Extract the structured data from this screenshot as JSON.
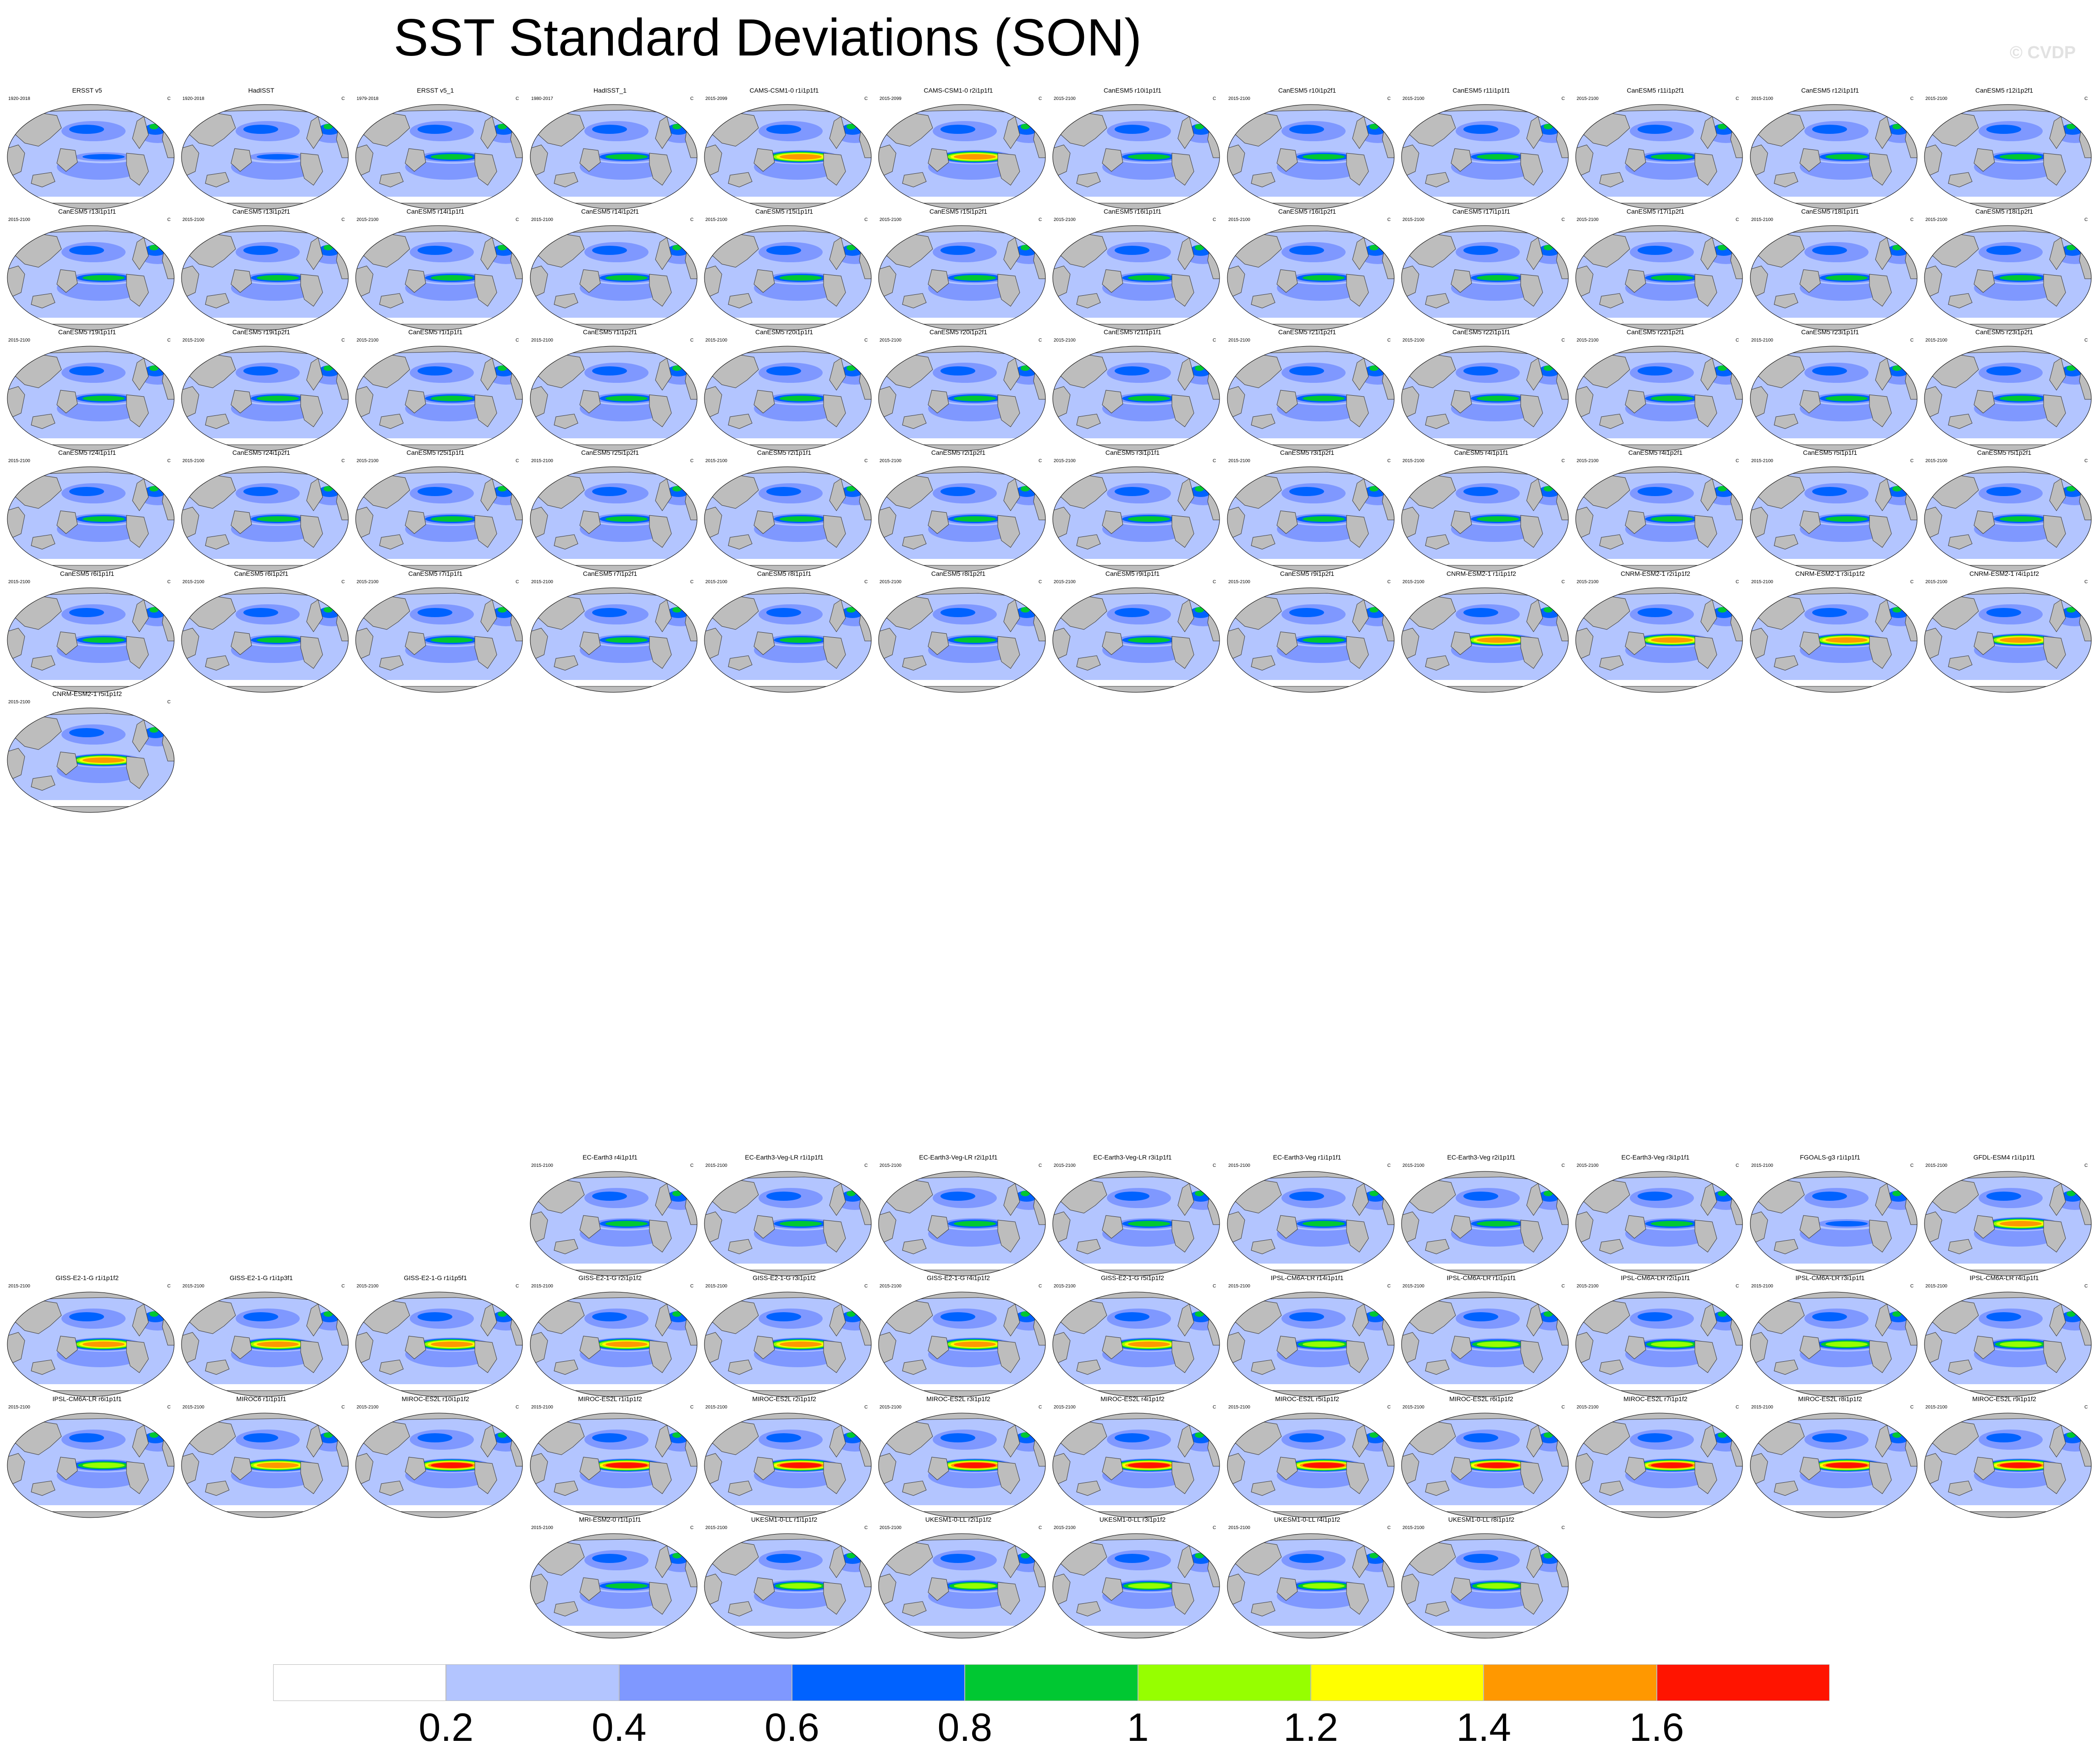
{
  "title": "SST Standard Deviations (SON)",
  "watermark": "© CVDP",
  "colors": {
    "land": "#bdbdbd",
    "ocean_base": "#b3c5ff",
    "coast": "#3a3a3a",
    "levels": [
      "#ffffff",
      "#b3c5ff",
      "#7f98ff",
      "#0062ff",
      "#00c832",
      "#96ff00",
      "#ffff00",
      "#ff9800",
      "#ff1400"
    ]
  },
  "chart_data": {
    "type": "heatmap",
    "title": "SST Standard Deviations (SON)",
    "units": "C",
    "levels": [
      0.2,
      0.4,
      0.6,
      0.8,
      1,
      1.2,
      1.4,
      1.6
    ],
    "colorbar_labels": [
      "0.2",
      "0.4",
      "0.6",
      "0.8",
      "1",
      "1.2",
      "1.4",
      "1.6"
    ],
    "panels": [
      {
        "title": "ERSST v5",
        "years": "1920-2018",
        "units": "C",
        "enso": 0.9
      },
      {
        "title": "HadISST",
        "years": "1920-2018",
        "units": "C",
        "enso": 0.9
      },
      {
        "title": "ERSST v5_1",
        "years": "1979-2018",
        "units": "C",
        "enso": 1.0
      },
      {
        "title": "HadISST_1",
        "years": "1980-2017",
        "units": "C",
        "enso": 1.0
      },
      {
        "title": "CAMS-CSM1-0 r1i1p1f1",
        "years": "2015-2099",
        "units": "C",
        "enso": 1.6
      },
      {
        "title": "CAMS-CSM1-0 r2i1p1f1",
        "years": "2015-2099",
        "units": "C",
        "enso": 1.6
      },
      {
        "title": "CanESM5 r10i1p1f1",
        "years": "2015-2100",
        "units": "C",
        "enso": 1.0
      },
      {
        "title": "CanESM5 r10i1p2f1",
        "years": "2015-2100",
        "units": "C",
        "enso": 1.0
      },
      {
        "title": "CanESM5 r11i1p1f1",
        "years": "2015-2100",
        "units": "C",
        "enso": 1.0
      },
      {
        "title": "CanESM5 r11i1p2f1",
        "years": "2015-2100",
        "units": "C",
        "enso": 1.0
      },
      {
        "title": "CanESM5 r12i1p1f1",
        "years": "2015-2100",
        "units": "C",
        "enso": 1.0
      },
      {
        "title": "CanESM5 r12i1p2f1",
        "years": "2015-2100",
        "units": "C",
        "enso": 1.0
      },
      {
        "title": "CanESM5 r13i1p1f1",
        "years": "2015-2100",
        "units": "C",
        "enso": 1.0
      },
      {
        "title": "CanESM5 r13i1p2f1",
        "years": "2015-2100",
        "units": "C",
        "enso": 1.0
      },
      {
        "title": "CanESM5 r14i1p1f1",
        "years": "2015-2100",
        "units": "C",
        "enso": 1.0
      },
      {
        "title": "CanESM5 r14i1p2f1",
        "years": "2015-2100",
        "units": "C",
        "enso": 1.0
      },
      {
        "title": "CanESM5 r15i1p1f1",
        "years": "2015-2100",
        "units": "C",
        "enso": 1.0
      },
      {
        "title": "CanESM5 r15i1p2f1",
        "years": "2015-2100",
        "units": "C",
        "enso": 1.0
      },
      {
        "title": "CanESM5 r16i1p1f1",
        "years": "2015-2100",
        "units": "C",
        "enso": 1.0
      },
      {
        "title": "CanESM5 r16i1p2f1",
        "years": "2015-2100",
        "units": "C",
        "enso": 1.0
      },
      {
        "title": "CanESM5 r17i1p1f1",
        "years": "2015-2100",
        "units": "C",
        "enso": 1.0
      },
      {
        "title": "CanESM5 r17i1p2f1",
        "years": "2015-2100",
        "units": "C",
        "enso": 1.0
      },
      {
        "title": "CanESM5 r18i1p1f1",
        "years": "2015-2100",
        "units": "C",
        "enso": 1.0
      },
      {
        "title": "CanESM5 r18i1p2f1",
        "years": "2015-2100",
        "units": "C",
        "enso": 1.0
      },
      {
        "title": "CanESM5 r19i1p1f1",
        "years": "2015-2100",
        "units": "C",
        "enso": 1.0
      },
      {
        "title": "CanESM5 r19i1p2f1",
        "years": "2015-2100",
        "units": "C",
        "enso": 1.0
      },
      {
        "title": "CanESM5 r1i1p1f1",
        "years": "2015-2100",
        "units": "C",
        "enso": 1.0
      },
      {
        "title": "CanESM5 r1i1p2f1",
        "years": "2015-2100",
        "units": "C",
        "enso": 1.0
      },
      {
        "title": "CanESM5 r20i1p1f1",
        "years": "2015-2100",
        "units": "C",
        "enso": 1.0
      },
      {
        "title": "CanESM5 r20i1p2f1",
        "years": "2015-2100",
        "units": "C",
        "enso": 1.0
      },
      {
        "title": "CanESM5 r21i1p1f1",
        "years": "2015-2100",
        "units": "C",
        "enso": 1.0
      },
      {
        "title": "CanESM5 r21i1p2f1",
        "years": "2015-2100",
        "units": "C",
        "enso": 1.0
      },
      {
        "title": "CanESM5 r22i1p1f1",
        "years": "2015-2100",
        "units": "C",
        "enso": 1.0
      },
      {
        "title": "CanESM5 r22i1p2f1",
        "years": "2015-2100",
        "units": "C",
        "enso": 1.0
      },
      {
        "title": "CanESM5 r23i1p1f1",
        "years": "2015-2100",
        "units": "C",
        "enso": 1.0
      },
      {
        "title": "CanESM5 r23i1p2f1",
        "years": "2015-2100",
        "units": "C",
        "enso": 1.0
      },
      {
        "title": "CanESM5 r24i1p1f1",
        "years": "2015-2100",
        "units": "C",
        "enso": 1.0
      },
      {
        "title": "CanESM5 r24i1p2f1",
        "years": "2015-2100",
        "units": "C",
        "enso": 1.0
      },
      {
        "title": "CanESM5 r25i1p1f1",
        "years": "2015-2100",
        "units": "C",
        "enso": 1.0
      },
      {
        "title": "CanESM5 r25i1p2f1",
        "years": "2015-2100",
        "units": "C",
        "enso": 1.0
      },
      {
        "title": "CanESM5 r2i1p1f1",
        "years": "2015-2100",
        "units": "C",
        "enso": 1.0
      },
      {
        "title": "CanESM5 r2i1p2f1",
        "years": "2015-2100",
        "units": "C",
        "enso": 1.0
      },
      {
        "title": "CanESM5 r3i1p1f1",
        "years": "2015-2100",
        "units": "C",
        "enso": 1.0
      },
      {
        "title": "CanESM5 r3i1p2f1",
        "years": "2015-2100",
        "units": "C",
        "enso": 1.0
      },
      {
        "title": "CanESM5 r4i1p1f1",
        "years": "2015-2100",
        "units": "C",
        "enso": 1.0
      },
      {
        "title": "CanESM5 r4i1p2f1",
        "years": "2015-2100",
        "units": "C",
        "enso": 1.0
      },
      {
        "title": "CanESM5 r5i1p1f1",
        "years": "2015-2100",
        "units": "C",
        "enso": 1.0
      },
      {
        "title": "CanESM5 r5i1p2f1",
        "years": "2015-2100",
        "units": "C",
        "enso": 1.0
      },
      {
        "title": "CanESM5 r6i1p1f1",
        "years": "2015-2100",
        "units": "C",
        "enso": 1.0
      },
      {
        "title": "CanESM5 r6i1p2f1",
        "years": "2015-2100",
        "units": "C",
        "enso": 1.0
      },
      {
        "title": "CanESM5 r7i1p1f1",
        "years": "2015-2100",
        "units": "C",
        "enso": 1.0
      },
      {
        "title": "CanESM5 r7i1p2f1",
        "years": "2015-2100",
        "units": "C",
        "enso": 1.0
      },
      {
        "title": "CanESM5 r8i1p1f1",
        "years": "2015-2100",
        "units": "C",
        "enso": 1.0
      },
      {
        "title": "CanESM5 r8i1p2f1",
        "years": "2015-2100",
        "units": "C",
        "enso": 1.0
      },
      {
        "title": "CanESM5 r9i1p1f1",
        "years": "2015-2100",
        "units": "C",
        "enso": 1.0
      },
      {
        "title": "CanESM5 r9i1p2f1",
        "years": "2015-2100",
        "units": "C",
        "enso": 1.0
      },
      {
        "title": "CNRM-ESM2-1 r1i1p1f2",
        "years": "2015-2100",
        "units": "C",
        "enso": 1.6
      },
      {
        "title": "CNRM-ESM2-1 r2i1p1f2",
        "years": "2015-2100",
        "units": "C",
        "enso": 1.6
      },
      {
        "title": "CNRM-ESM2-1 r3i1p1f2",
        "years": "2015-2100",
        "units": "C",
        "enso": 1.6
      },
      {
        "title": "CNRM-ESM2-1 r4i1p1f2",
        "years": "2015-2100",
        "units": "C",
        "enso": 1.6
      },
      {
        "title": "CNRM-ESM2-1 r5i1p1f2",
        "years": "2015-2100",
        "units": "C",
        "enso": 1.6
      },
      {
        "title": "EC-Earth3 r4i1p1f1",
        "years": "2015-2100",
        "units": "C",
        "enso": 1.0
      },
      {
        "title": "EC-Earth3-Veg-LR r1i1p1f1",
        "years": "2015-2100",
        "units": "C",
        "enso": 1.0
      },
      {
        "title": "EC-Earth3-Veg-LR r2i1p1f1",
        "years": "2015-2100",
        "units": "C",
        "enso": 1.0
      },
      {
        "title": "EC-Earth3-Veg-LR r3i1p1f1",
        "years": "2015-2100",
        "units": "C",
        "enso": 1.0
      },
      {
        "title": "EC-Earth3-Veg r1i1p1f1",
        "years": "2015-2100",
        "units": "C",
        "enso": 1.0
      },
      {
        "title": "EC-Earth3-Veg r2i1p1f1",
        "years": "2015-2100",
        "units": "C",
        "enso": 1.0
      },
      {
        "title": "EC-Earth3-Veg r3i1p1f1",
        "years": "2015-2100",
        "units": "C",
        "enso": 1.0
      },
      {
        "title": "FGOALS-g3 r1i1p1f1",
        "years": "2015-2100",
        "units": "C",
        "enso": 0.8
      },
      {
        "title": "GFDL-ESM4 r1i1p1f1",
        "years": "2015-2100",
        "units": "C",
        "enso": 1.6
      },
      {
        "title": "GISS-E2-1-G r1i1p1f2",
        "years": "2015-2100",
        "units": "C",
        "enso": 1.6
      },
      {
        "title": "GISS-E2-1-G r1i1p3f1",
        "years": "2015-2100",
        "units": "C",
        "enso": 1.6
      },
      {
        "title": "GISS-E2-1-G r1i1p5f1",
        "years": "2015-2100",
        "units": "C",
        "enso": 1.6
      },
      {
        "title": "GISS-E2-1-G r2i1p1f2",
        "years": "2015-2100",
        "units": "C",
        "enso": 1.6
      },
      {
        "title": "GISS-E2-1-G r3i1p1f2",
        "years": "2015-2100",
        "units": "C",
        "enso": 1.6
      },
      {
        "title": "GISS-E2-1-G r4i1p1f2",
        "years": "2015-2100",
        "units": "C",
        "enso": 1.6
      },
      {
        "title": "GISS-E2-1-G r5i1p1f2",
        "years": "2015-2100",
        "units": "C",
        "enso": 1.6
      },
      {
        "title": "IPSL-CM6A-LR r14i1p1f1",
        "years": "2015-2100",
        "units": "C",
        "enso": 1.2
      },
      {
        "title": "IPSL-CM6A-LR r1i1p1f1",
        "years": "2015-2100",
        "units": "C",
        "enso": 1.2
      },
      {
        "title": "IPSL-CM6A-LR r2i1p1f1",
        "years": "2015-2100",
        "units": "C",
        "enso": 1.2
      },
      {
        "title": "IPSL-CM6A-LR r3i1p1f1",
        "years": "2015-2100",
        "units": "C",
        "enso": 1.2
      },
      {
        "title": "IPSL-CM6A-LR r4i1p1f1",
        "years": "2015-2100",
        "units": "C",
        "enso": 1.2
      },
      {
        "title": "IPSL-CM6A-LR r6i1p1f1",
        "years": "2015-2100",
        "units": "C",
        "enso": 1.2
      },
      {
        "title": "MIROC6 r1i1p1f1",
        "years": "2015-2100",
        "units": "C",
        "enso": 1.6
      },
      {
        "title": "MIROC-ES2L r10i1p1f2",
        "years": "2015-2100",
        "units": "C",
        "enso": 1.8
      },
      {
        "title": "MIROC-ES2L r1i1p1f2",
        "years": "2015-2100",
        "units": "C",
        "enso": 1.8
      },
      {
        "title": "MIROC-ES2L r2i1p1f2",
        "years": "2015-2100",
        "units": "C",
        "enso": 1.8
      },
      {
        "title": "MIROC-ES2L r3i1p1f2",
        "years": "2015-2100",
        "units": "C",
        "enso": 1.8
      },
      {
        "title": "MIROC-ES2L r4i1p1f2",
        "years": "2015-2100",
        "units": "C",
        "enso": 1.8
      },
      {
        "title": "MIROC-ES2L r5i1p1f2",
        "years": "2015-2100",
        "units": "C",
        "enso": 1.8
      },
      {
        "title": "MIROC-ES2L r6i1p1f2",
        "years": "2015-2100",
        "units": "C",
        "enso": 1.8
      },
      {
        "title": "MIROC-ES2L r7i1p1f2",
        "years": "2015-2100",
        "units": "C",
        "enso": 1.8
      },
      {
        "title": "MIROC-ES2L r8i1p1f2",
        "years": "2015-2100",
        "units": "C",
        "enso": 1.8
      },
      {
        "title": "MIROC-ES2L r9i1p1f2",
        "years": "2015-2100",
        "units": "C",
        "enso": 1.8
      },
      {
        "title": "MRI-ESM2-0 r1i1p1f1",
        "years": "2015-2100",
        "units": "C",
        "enso": 1.0
      },
      {
        "title": "UKESM1-0-LL r1i1p1f2",
        "years": "2015-2100",
        "units": "C",
        "enso": 1.2
      },
      {
        "title": "UKESM1-0-LL r2i1p1f2",
        "years": "2015-2100",
        "units": "C",
        "enso": 1.2
      },
      {
        "title": "UKESM1-0-LL r3i1p1f2",
        "years": "2015-2100",
        "units": "C",
        "enso": 1.2
      },
      {
        "title": "UKESM1-0-LL r4i1p1f2",
        "years": "2015-2100",
        "units": "C",
        "enso": 1.2
      },
      {
        "title": "UKESM1-0-LL r8i1p1f2",
        "years": "2015-2100",
        "units": "C",
        "enso": 1.2
      }
    ]
  }
}
